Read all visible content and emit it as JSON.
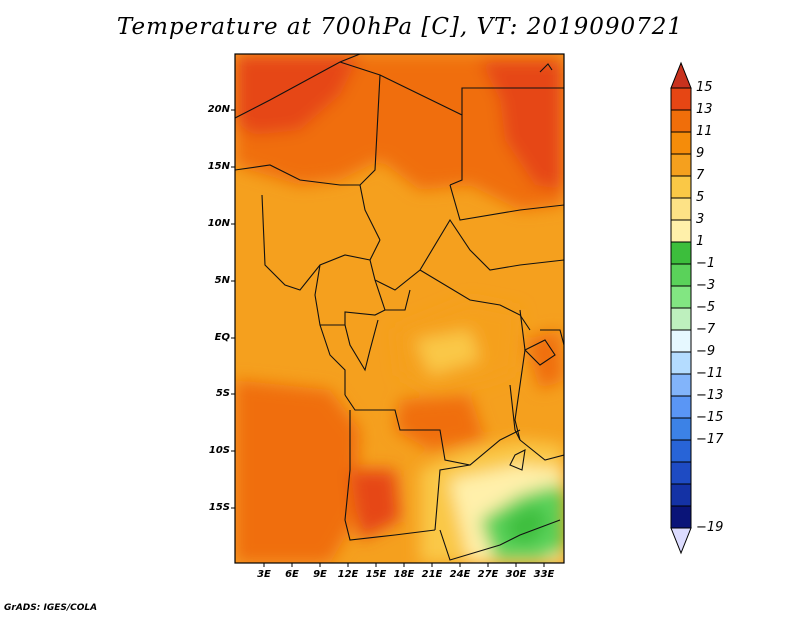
{
  "title": "Temperature at 700hPa [C], VT: 2019090721",
  "credit": "GrADS: IGES/COLA",
  "map": {
    "lat_labels": [
      "20N",
      "15N",
      "10N",
      "5N",
      "EQ",
      "5S",
      "10S",
      "15S"
    ],
    "lon_labels": [
      "3E",
      "6E",
      "9E",
      "12E",
      "15E",
      "18E",
      "21E",
      "24E",
      "27E",
      "30E",
      "33E"
    ]
  },
  "colorbar": {
    "labels": [
      "15",
      "13",
      "11",
      "9",
      "7",
      "5",
      "3",
      "1",
      "−1",
      "−3",
      "−5",
      "−7",
      "−9",
      "−11",
      "−13",
      "−15",
      "−17",
      "−19"
    ],
    "colors": [
      "#c8321e",
      "#e64614",
      "#f06e0a",
      "#f58c0a",
      "#f5a01e",
      "#fac846",
      "#fff0aa",
      "#3cbe3c",
      "#5ad25a",
      "#82e682",
      "#bef0be",
      "#dcf5ff",
      "#a0d2ff",
      "#82b4fa",
      "#5a96f5",
      "#3c78e6",
      "#285ad2",
      "#1e3cb4",
      "#140a78",
      "#dcdcff"
    ]
  }
}
